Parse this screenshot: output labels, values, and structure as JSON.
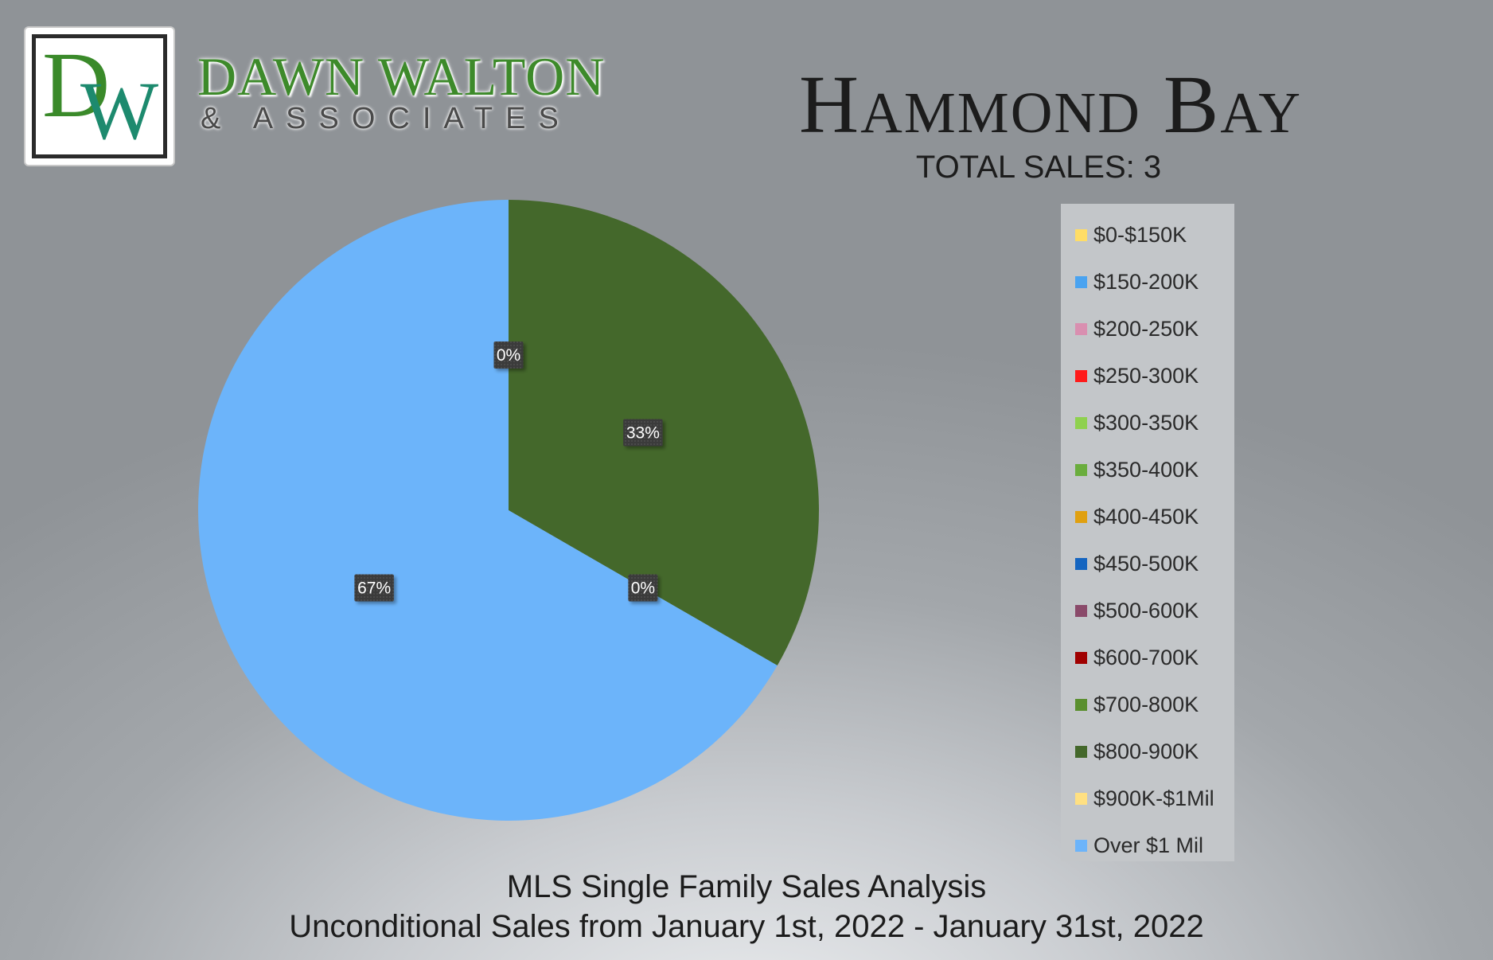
{
  "brand": {
    "logo_d": "D",
    "logo_w": "W",
    "name": "DAWN WALTON",
    "sub": "& ASSOCIATES"
  },
  "header": {
    "title": "Hammond Bay",
    "total_sales": "TOTAL SALES: 3"
  },
  "footer": {
    "line1": "MLS Single Family Sales Analysis",
    "line2": "Unconditional Sales from January 1st, 2022 - January 31st, 2022"
  },
  "chart_data": {
    "type": "pie",
    "title": "Hammond Bay",
    "subtitle": "TOTAL SALES: 3",
    "legend_position": "right",
    "slices": [
      {
        "label": "$0-$150K",
        "value": 0,
        "percent_label": "",
        "color": "#ffdd66"
      },
      {
        "label": "$150-200K",
        "value": 0,
        "percent_label": "",
        "color": "#4aa3f0"
      },
      {
        "label": "$200-250K",
        "value": 0,
        "percent_label": "",
        "color": "#d98fb0"
      },
      {
        "label": "$250-300K",
        "value": 0,
        "percent_label": "",
        "color": "#ff1a1a"
      },
      {
        "label": "$300-350K",
        "value": 0,
        "percent_label": "",
        "color": "#8fd14f"
      },
      {
        "label": "$350-400K",
        "value": 0,
        "percent_label": "",
        "color": "#6aad3d"
      },
      {
        "label": "$400-450K",
        "value": 0,
        "percent_label": "",
        "color": "#e0a010"
      },
      {
        "label": "$450-500K",
        "value": 0,
        "percent_label": "",
        "color": "#1565c0"
      },
      {
        "label": "$500-600K",
        "value": 0,
        "percent_label": "",
        "color": "#8a4a6a"
      },
      {
        "label": "$600-700K",
        "value": 0,
        "percent_label": "",
        "color": "#a00000"
      },
      {
        "label": "$700-800K",
        "value": 0,
        "percent_label": "0%",
        "color": "#5a8f2e"
      },
      {
        "label": "$800-900K",
        "value": 1,
        "percent_label": "33%",
        "color": "#44682b"
      },
      {
        "label": "$900K-$1Mil",
        "value": 0,
        "percent_label": "0%",
        "color": "#ffe082"
      },
      {
        "label": "Over $1 Mil",
        "value": 2,
        "percent_label": "67%",
        "color": "#6cb4fa"
      }
    ]
  }
}
